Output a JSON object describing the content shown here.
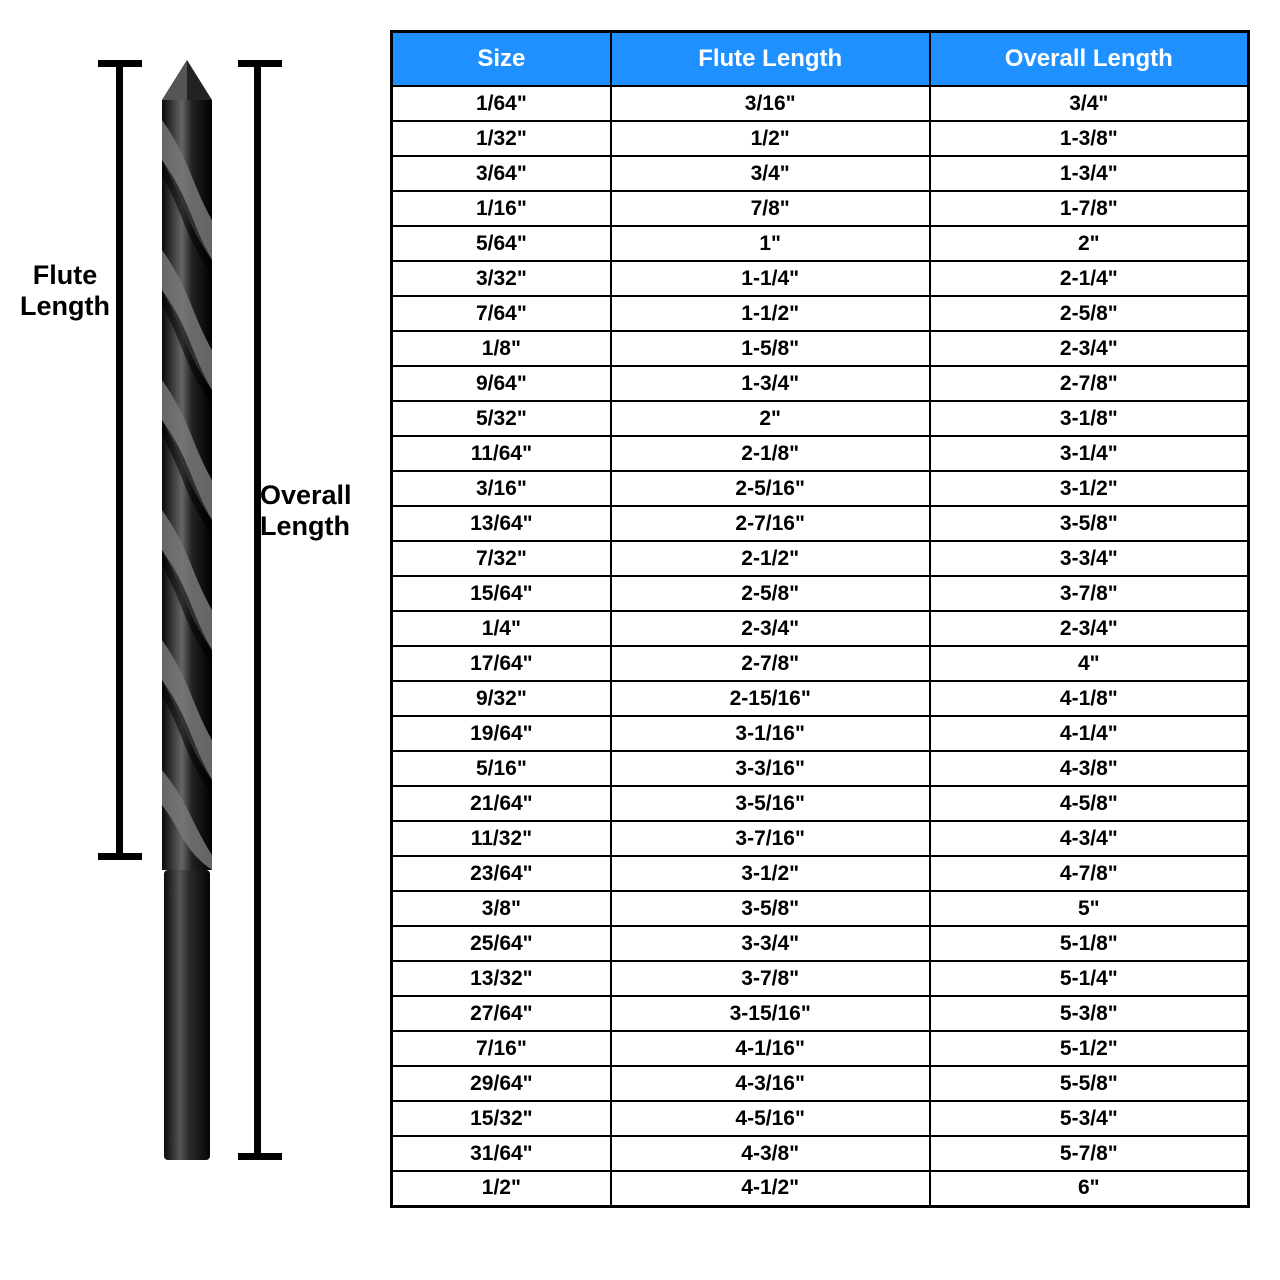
{
  "diagram": {
    "flute_label_line1": "Flute",
    "flute_label_line2": "Length",
    "overall_label_line1": "Overall",
    "overall_label_line2": "Length",
    "drill_body_color": "#1a1a1a",
    "drill_highlight_color": "#6b6b6b",
    "bracket_color": "#000000"
  },
  "table": {
    "header_bg": "#1e90ff",
    "header_fg": "#ffffff",
    "border_color": "#000000",
    "cell_fg": "#000000",
    "columns": [
      "Size",
      "Flute Length",
      "Overall Length"
    ],
    "rows": [
      [
        "1/64\"",
        "3/16\"",
        "3/4\""
      ],
      [
        "1/32\"",
        "1/2\"",
        "1-3/8\""
      ],
      [
        "3/64\"",
        "3/4\"",
        "1-3/4\""
      ],
      [
        "1/16\"",
        "7/8\"",
        "1-7/8\""
      ],
      [
        "5/64\"",
        "1\"",
        "2\""
      ],
      [
        "3/32\"",
        "1-1/4\"",
        "2-1/4\""
      ],
      [
        "7/64\"",
        "1-1/2\"",
        "2-5/8\""
      ],
      [
        "1/8\"",
        "1-5/8\"",
        "2-3/4\""
      ],
      [
        "9/64\"",
        "1-3/4\"",
        "2-7/8\""
      ],
      [
        "5/32\"",
        "2\"",
        "3-1/8\""
      ],
      [
        "11/64\"",
        "2-1/8\"",
        "3-1/4\""
      ],
      [
        "3/16\"",
        "2-5/16\"",
        "3-1/2\""
      ],
      [
        "13/64\"",
        "2-7/16\"",
        "3-5/8\""
      ],
      [
        "7/32\"",
        "2-1/2\"",
        "3-3/4\""
      ],
      [
        "15/64\"",
        "2-5/8\"",
        "3-7/8\""
      ],
      [
        "1/4\"",
        "2-3/4\"",
        "2-3/4\""
      ],
      [
        "17/64\"",
        "2-7/8\"",
        "4\""
      ],
      [
        "9/32\"",
        "2-15/16\"",
        "4-1/8\""
      ],
      [
        "19/64\"",
        "3-1/16\"",
        "4-1/4\""
      ],
      [
        "5/16\"",
        "3-3/16\"",
        "4-3/8\""
      ],
      [
        "21/64\"",
        "3-5/16\"",
        "4-5/8\""
      ],
      [
        "11/32\"",
        "3-7/16\"",
        "4-3/4\""
      ],
      [
        "23/64\"",
        "3-1/2\"",
        "4-7/8\""
      ],
      [
        "3/8\"",
        "3-5/8\"",
        "5\""
      ],
      [
        "25/64\"",
        "3-3/4\"",
        "5-1/8\""
      ],
      [
        "13/32\"",
        "3-7/8\"",
        "5-1/4\""
      ],
      [
        "27/64\"",
        "3-15/16\"",
        "5-3/8\""
      ],
      [
        "7/16\"",
        "4-1/16\"",
        "5-1/2\""
      ],
      [
        "29/64\"",
        "4-3/16\"",
        "5-5/8\""
      ],
      [
        "15/32\"",
        "4-5/16\"",
        "5-3/4\""
      ],
      [
        "31/64\"",
        "4-3/8\"",
        "5-7/8\""
      ],
      [
        "1/2\"",
        "4-1/2\"",
        "6\""
      ]
    ]
  }
}
